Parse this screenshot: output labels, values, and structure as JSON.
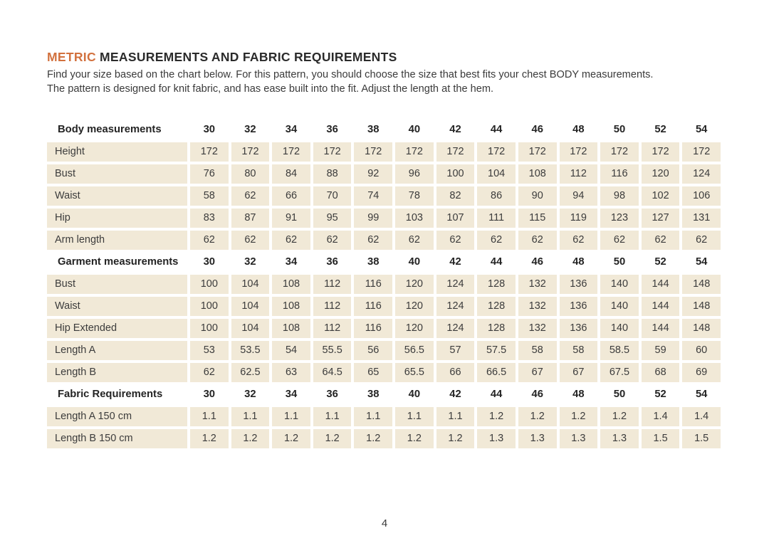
{
  "page": {
    "title_highlight": "METRIC",
    "title_rest": " MEASUREMENTS AND FABRIC REQUIREMENTS",
    "description_line1": "Find your size based on the chart below. For this pattern, you should choose the size that best fits your chest BODY measurements.",
    "description_line2": "The pattern is designed for knit fabric, and has ease built into the fit.  Adjust the length at the hem.",
    "page_number": "4"
  },
  "colors": {
    "accent_orange": "#d2713e",
    "cell_beige": "#f1e9d7",
    "heading_dark": "#2b2b2b",
    "body_text": "#3a3a3a"
  },
  "table": {
    "sizes": [
      "30",
      "32",
      "34",
      "36",
      "38",
      "40",
      "42",
      "44",
      "46",
      "48",
      "50",
      "52",
      "54"
    ],
    "sections": [
      {
        "header": "Body measurements",
        "rows": [
          {
            "label": "Height",
            "values": [
              "172",
              "172",
              "172",
              "172",
              "172",
              "172",
              "172",
              "172",
              "172",
              "172",
              "172",
              "172",
              "172"
            ]
          },
          {
            "label": "Bust",
            "values": [
              "76",
              "80",
              "84",
              "88",
              "92",
              "96",
              "100",
              "104",
              "108",
              "112",
              "116",
              "120",
              "124"
            ]
          },
          {
            "label": "Waist",
            "values": [
              "58",
              "62",
              "66",
              "70",
              "74",
              "78",
              "82",
              "86",
              "90",
              "94",
              "98",
              "102",
              "106"
            ]
          },
          {
            "label": "Hip",
            "values": [
              "83",
              "87",
              "91",
              "95",
              "99",
              "103",
              "107",
              "111",
              "115",
              "119",
              "123",
              "127",
              "131"
            ]
          },
          {
            "label": "Arm length",
            "values": [
              "62",
              "62",
              "62",
              "62",
              "62",
              "62",
              "62",
              "62",
              "62",
              "62",
              "62",
              "62",
              "62"
            ]
          }
        ]
      },
      {
        "header": "Garment measurements",
        "rows": [
          {
            "label": "Bust",
            "values": [
              "100",
              "104",
              "108",
              "112",
              "116",
              "120",
              "124",
              "128",
              "132",
              "136",
              "140",
              "144",
              "148"
            ]
          },
          {
            "label": "Waist",
            "values": [
              "100",
              "104",
              "108",
              "112",
              "116",
              "120",
              "124",
              "128",
              "132",
              "136",
              "140",
              "144",
              "148"
            ]
          },
          {
            "label": "Hip Extended",
            "values": [
              "100",
              "104",
              "108",
              "112",
              "116",
              "120",
              "124",
              "128",
              "132",
              "136",
              "140",
              "144",
              "148"
            ]
          },
          {
            "label": "Length A",
            "values": [
              "53",
              "53.5",
              "54",
              "55.5",
              "56",
              "56.5",
              "57",
              "57.5",
              "58",
              "58",
              "58.5",
              "59",
              "60"
            ]
          },
          {
            "label": "Length B",
            "values": [
              "62",
              "62.5",
              "63",
              "64.5",
              "65",
              "65.5",
              "66",
              "66.5",
              "67",
              "67",
              "67.5",
              "68",
              "69"
            ]
          }
        ]
      },
      {
        "header": "Fabric Requirements",
        "rows": [
          {
            "label": "Length A 150 cm",
            "values": [
              "1.1",
              "1.1",
              "1.1",
              "1.1",
              "1.1",
              "1.1",
              "1.1",
              "1.2",
              "1.2",
              "1.2",
              "1.2",
              "1.4",
              "1.4"
            ]
          },
          {
            "label": "Length B 150 cm",
            "values": [
              "1.2",
              "1.2",
              "1.2",
              "1.2",
              "1.2",
              "1.2",
              "1.2",
              "1.3",
              "1.3",
              "1.3",
              "1.3",
              "1.5",
              "1.5"
            ]
          }
        ]
      }
    ]
  }
}
